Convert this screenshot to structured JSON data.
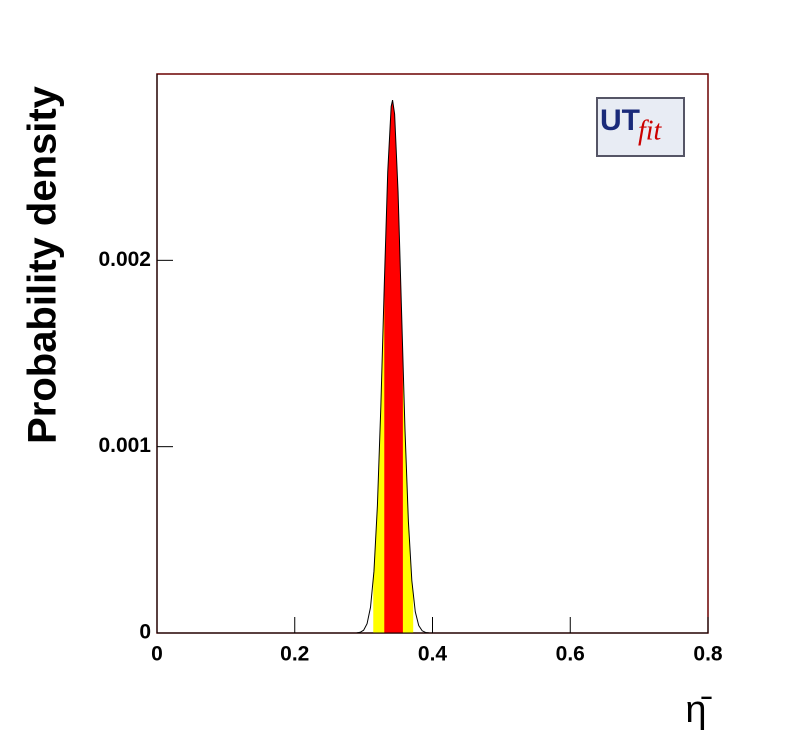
{
  "chart_data": {
    "type": "density",
    "x_label": "η̄",
    "y_label": "Probability density",
    "logo": {
      "main": "UT",
      "sub": "fit"
    },
    "x": [
      0.29,
      0.295,
      0.3,
      0.305,
      0.31,
      0.315,
      0.32,
      0.325,
      0.33,
      0.335,
      0.34,
      0.342,
      0.345,
      0.35,
      0.355,
      0.36,
      0.365,
      0.37,
      0.375,
      0.38,
      0.385,
      0.39,
      0.395
    ],
    "values": [
      1e-06,
      4e-06,
      1.5e-05,
      5e-05,
      0.000138,
      0.000331,
      0.000683,
      0.001216,
      0.001868,
      0.002474,
      0.002826,
      0.00286,
      0.002785,
      0.002367,
      0.001735,
      0.001096,
      0.000598,
      0.000281,
      0.000114,
      4e-05,
      1.2e-05,
      3e-06,
      1e-06
    ],
    "line_color": "#000000",
    "bands": [
      {
        "color": "#ffff00",
        "range": [
          0.314,
          0.372
        ]
      },
      {
        "color": "#ff0000",
        "range": [
          0.33,
          0.357
        ]
      }
    ],
    "xlim": [
      0,
      0.8
    ],
    "xticks": [
      0,
      0.2,
      0.4,
      0.6,
      0.8
    ],
    "ylim": [
      0,
      0.003
    ],
    "yticks": [
      0,
      0.001,
      0.002
    ]
  }
}
